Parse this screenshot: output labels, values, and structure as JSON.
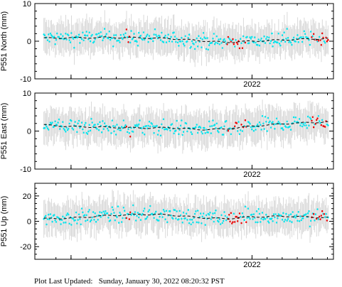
{
  "chart_data": [
    {
      "type": "scatter",
      "ylabel": "P551 North (mm)",
      "ylim": [
        -10,
        10
      ],
      "yticks": [
        -10,
        0,
        10
      ],
      "xlim": [
        2020.8,
        2022.45
      ],
      "xtick_labels": [
        {
          "x": 2022.0,
          "label": "2022"
        }
      ],
      "point_count": 300,
      "series": [
        {
          "values_note": "daily position estimates",
          "color": "#00e5ee"
        },
        {
          "values_note": "recent / rapid estimates",
          "color": "#ee0000"
        }
      ],
      "trend": [
        [
          2020.85,
          0.8
        ],
        [
          2021.0,
          0.9
        ],
        [
          2021.2,
          1.0
        ],
        [
          2021.4,
          0.9
        ],
        [
          2021.55,
          0.7
        ],
        [
          2021.7,
          0.2
        ],
        [
          2021.85,
          -0.3
        ],
        [
          2022.0,
          0.0
        ],
        [
          2022.2,
          0.4
        ],
        [
          2022.4,
          0.7
        ]
      ],
      "trend_color": "#000000"
    },
    {
      "type": "scatter",
      "ylabel": "P551 East (mm)",
      "ylim": [
        -10,
        10
      ],
      "yticks": [
        -10,
        0,
        10
      ],
      "xlim": [
        2020.8,
        2022.45
      ],
      "xtick_labels": [
        {
          "x": 2022.0,
          "label": "2022"
        }
      ],
      "point_count": 300,
      "series": [
        {
          "values_note": "daily position estimates",
          "color": "#00e5ee"
        },
        {
          "values_note": "recent / rapid estimates",
          "color": "#ee0000"
        }
      ],
      "trend": [
        [
          2020.85,
          1.6
        ],
        [
          2021.0,
          1.2
        ],
        [
          2021.2,
          1.0
        ],
        [
          2021.4,
          0.8
        ],
        [
          2021.55,
          0.9
        ],
        [
          2021.7,
          0.4
        ],
        [
          2021.85,
          0.5
        ],
        [
          2022.0,
          1.3
        ],
        [
          2022.2,
          2.0
        ],
        [
          2022.4,
          2.4
        ]
      ],
      "trend_color": "#000000"
    },
    {
      "type": "scatter",
      "ylabel": "P551 Up (mm)",
      "ylim": [
        -30,
        30
      ],
      "yticks": [
        -20,
        0,
        20
      ],
      "xlim": [
        2020.8,
        2022.45
      ],
      "xtick_labels": [
        {
          "x": 2022.0,
          "label": "2022"
        }
      ],
      "point_count": 300,
      "series": [
        {
          "values_note": "daily position estimates",
          "color": "#00e5ee"
        },
        {
          "values_note": "recent / rapid estimates",
          "color": "#ee0000"
        }
      ],
      "trend": [
        [
          2020.85,
          2.0
        ],
        [
          2021.0,
          2.5
        ],
        [
          2021.2,
          4.5
        ],
        [
          2021.4,
          5.5
        ],
        [
          2021.55,
          5.0
        ],
        [
          2021.7,
          3.0
        ],
        [
          2021.85,
          2.0
        ],
        [
          2022.0,
          3.5
        ],
        [
          2022.2,
          4.0
        ],
        [
          2022.4,
          3.0
        ]
      ],
      "trend_color": "#000000"
    }
  ],
  "footer": {
    "text": "Plot Last Updated:   Sunday, January 30, 2022 08:20:32 PST"
  }
}
